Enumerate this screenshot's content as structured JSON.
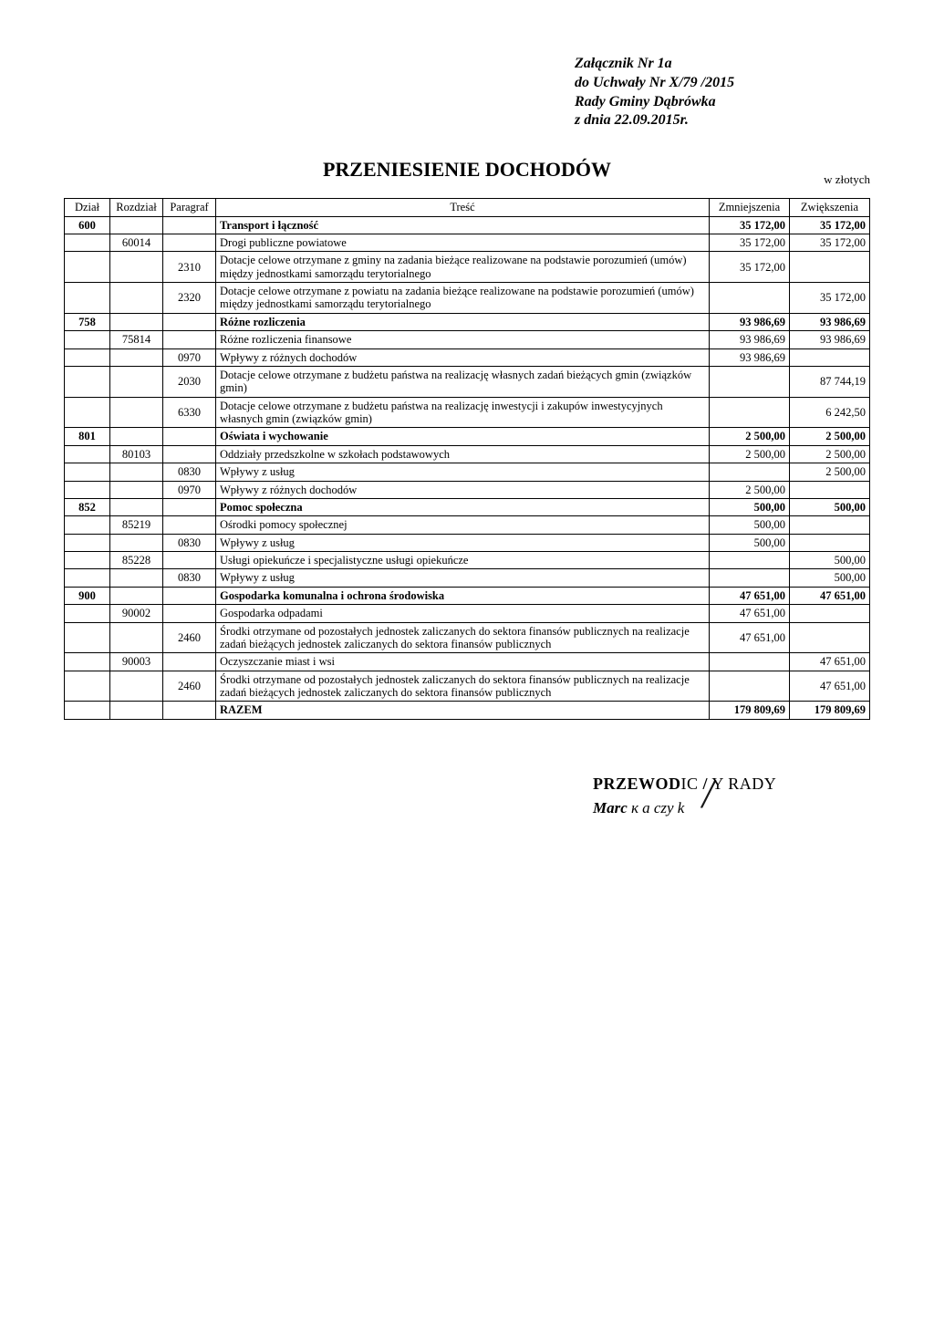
{
  "header": {
    "line1": "Załącznik Nr 1a",
    "line2": "do Uchwały Nr X/79 /2015",
    "line3": "Rady Gminy Dąbrówka",
    "line4": "z dnia  22.09.2015r."
  },
  "title": "PRZENIESIENIE DOCHODÓW",
  "currency": "w złotych",
  "columns": {
    "dzial": "Dział",
    "rozdzial": "Rozdział",
    "paragraf": "Paragraf",
    "tresc": "Treść",
    "zmn": "Zmniejszenia",
    "zwi": "Zwiększenia"
  },
  "rows": [
    {
      "dzial": "600",
      "rozdzial": "",
      "paragraf": "",
      "tresc": "Transport i łączność",
      "zmn": "35 172,00",
      "zwi": "35 172,00",
      "bold": true
    },
    {
      "dzial": "",
      "rozdzial": "60014",
      "paragraf": "",
      "tresc": "Drogi publiczne powiatowe",
      "zmn": "35 172,00",
      "zwi": "35 172,00"
    },
    {
      "dzial": "",
      "rozdzial": "",
      "paragraf": "2310",
      "tresc": "Dotacje celowe otrzymane z gminy na zadania bieżące realizowane na podstawie porozumień (umów) między jednostkami samorządu terytorialnego",
      "zmn": "35 172,00",
      "zwi": ""
    },
    {
      "dzial": "",
      "rozdzial": "",
      "paragraf": "2320",
      "tresc": "Dotacje celowe otrzymane z powiatu na zadania bieżące realizowane na podstawie porozumień (umów) między jednostkami samorządu terytorialnego",
      "zmn": "",
      "zwi": "35 172,00"
    },
    {
      "dzial": "758",
      "rozdzial": "",
      "paragraf": "",
      "tresc": "Różne rozliczenia",
      "zmn": "93 986,69",
      "zwi": "93 986,69",
      "bold": true
    },
    {
      "dzial": "",
      "rozdzial": "75814",
      "paragraf": "",
      "tresc": "Różne rozliczenia finansowe",
      "zmn": "93 986,69",
      "zwi": "93 986,69"
    },
    {
      "dzial": "",
      "rozdzial": "",
      "paragraf": "0970",
      "tresc": "Wpływy z różnych dochodów",
      "zmn": "93 986,69",
      "zwi": ""
    },
    {
      "dzial": "",
      "rozdzial": "",
      "paragraf": "2030",
      "tresc": "Dotacje celowe otrzymane z budżetu państwa na realizację własnych zadań bieżących gmin (związków gmin)",
      "zmn": "",
      "zwi": "87 744,19"
    },
    {
      "dzial": "",
      "rozdzial": "",
      "paragraf": "6330",
      "tresc": "Dotacje celowe otrzymane z budżetu państwa na realizację inwestycji i zakupów inwestycyjnych własnych gmin (związków gmin)",
      "zmn": "",
      "zwi": "6 242,50"
    },
    {
      "dzial": "801",
      "rozdzial": "",
      "paragraf": "",
      "tresc": "Oświata i wychowanie",
      "zmn": "2 500,00",
      "zwi": "2 500,00",
      "bold": true
    },
    {
      "dzial": "",
      "rozdzial": "80103",
      "paragraf": "",
      "tresc": "Oddziały przedszkolne w szkołach podstawowych",
      "zmn": "2 500,00",
      "zwi": "2 500,00"
    },
    {
      "dzial": "",
      "rozdzial": "",
      "paragraf": "0830",
      "tresc": "Wpływy z usług",
      "zmn": "",
      "zwi": "2 500,00"
    },
    {
      "dzial": "",
      "rozdzial": "",
      "paragraf": "0970",
      "tresc": "Wpływy z różnych dochodów",
      "zmn": "2 500,00",
      "zwi": ""
    },
    {
      "dzial": "852",
      "rozdzial": "",
      "paragraf": "",
      "tresc": "Pomoc społeczna",
      "zmn": "500,00",
      "zwi": "500,00",
      "bold": true
    },
    {
      "dzial": "",
      "rozdzial": "85219",
      "paragraf": "",
      "tresc": "Ośrodki pomocy społecznej",
      "zmn": "500,00",
      "zwi": ""
    },
    {
      "dzial": "",
      "rozdzial": "",
      "paragraf": "0830",
      "tresc": "Wpływy z usług",
      "zmn": "500,00",
      "zwi": ""
    },
    {
      "dzial": "",
      "rozdzial": "85228",
      "paragraf": "",
      "tresc": "Usługi opiekuńcze i specjalistyczne usługi opiekuńcze",
      "zmn": "",
      "zwi": "500,00"
    },
    {
      "dzial": "",
      "rozdzial": "",
      "paragraf": "0830",
      "tresc": "Wpływy z usług",
      "zmn": "",
      "zwi": "500,00"
    },
    {
      "dzial": "900",
      "rozdzial": "",
      "paragraf": "",
      "tresc": "Gospodarka komunalna i ochrona środowiska",
      "zmn": "47 651,00",
      "zwi": "47 651,00",
      "bold": true
    },
    {
      "dzial": "",
      "rozdzial": "90002",
      "paragraf": "",
      "tresc": "Gospodarka odpadami",
      "zmn": "47 651,00",
      "zwi": ""
    },
    {
      "dzial": "",
      "rozdzial": "",
      "paragraf": "2460",
      "tresc": "Środki otrzymane od pozostałych jednostek zaliczanych do sektora finansów publicznych na realizacje zadań bieżących jednostek zaliczanych do sektora finansów publicznych",
      "zmn": "47 651,00",
      "zwi": ""
    },
    {
      "dzial": "",
      "rozdzial": "90003",
      "paragraf": "",
      "tresc": "Oczyszczanie miast i wsi",
      "zmn": "",
      "zwi": "47 651,00"
    },
    {
      "dzial": "",
      "rozdzial": "",
      "paragraf": "2460",
      "tresc": "Środki otrzymane od pozostałych jednostek zaliczanych do sektora finansów publicznych na realizacje zadań bieżących jednostek zaliczanych do sektora finansów publicznych",
      "zmn": "",
      "zwi": "47 651,00"
    },
    {
      "dzial": "",
      "rozdzial": "",
      "paragraf": "",
      "tresc": "RAZEM",
      "zmn": "179 809,69",
      "zwi": "179 809,69",
      "bold": true
    }
  ],
  "signature": {
    "line1_a": "PRZEWOD",
    "line1_b": "IC",
    "line1_c": " Y RADY",
    "line2_a": "Marc  ",
    "line2_b": "a czy k"
  }
}
